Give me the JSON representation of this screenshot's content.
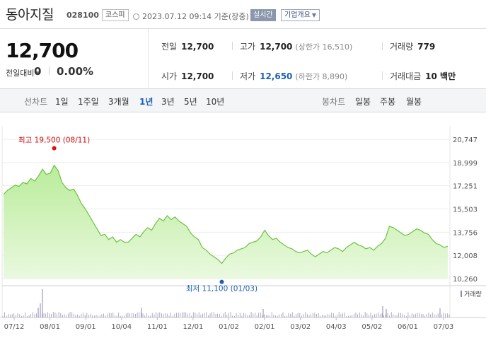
{
  "header": {
    "name": "동아지질",
    "code": "028100",
    "market": "코스피",
    "timestamp": "2023.07.12 09:14 기준(장중)",
    "realtime": "실시간",
    "company_overview": "기업개요"
  },
  "summary": {
    "price": "12,700",
    "change_label": "전일대비",
    "change_value": "0",
    "change_rate": "0.00%",
    "prev_close_label": "전일",
    "prev_close": "12,700",
    "open_label": "시가",
    "open": "12,700",
    "high_label": "고가",
    "high": "12,700",
    "upper_limit": "(상한가 16,510)",
    "low_label": "저가",
    "low": "12,650",
    "lower_limit": "(하한가 8,890)",
    "volume_label": "거래량",
    "volume": "779",
    "amount_label": "거래대금",
    "amount": "10 백만"
  },
  "tabs": {
    "line_label": "선차트",
    "line_periods": [
      "1일",
      "1주일",
      "3개월",
      "1년",
      "3년",
      "5년",
      "10년"
    ],
    "active_period": "1년",
    "candle_label": "봉차트",
    "candle_periods": [
      "일봉",
      "주봉",
      "월봉"
    ]
  },
  "chart_data": {
    "type": "area",
    "y_ticks": [
      "20,747",
      "18,999",
      "17,251",
      "15,503",
      "13,756",
      "12,008",
      "10,260"
    ],
    "ylim": [
      10260,
      20747
    ],
    "x_ticks": [
      "07/12",
      "08/01",
      "09/01",
      "10/04",
      "11/01",
      "12/01",
      "01/02",
      "02/01",
      "03/02",
      "04/03",
      "05/02",
      "06/01",
      "07/03"
    ],
    "annotations": {
      "high_label": "최고 19,500 (08/11)",
      "low_label": "최저 11,100 (01/03)"
    },
    "volume_legend": "거래량",
    "prices": [
      16600,
      16900,
      17100,
      17300,
      17200,
      17500,
      17400,
      17800,
      17600,
      18000,
      18500,
      18100,
      18200,
      18800,
      18400,
      17500,
      17100,
      16900,
      17000,
      16500,
      15900,
      15500,
      15000,
      14500,
      14000,
      13500,
      13600,
      13200,
      13400,
      13000,
      13200,
      13000,
      13000,
      13300,
      13600,
      13400,
      13800,
      14100,
      13900,
      14400,
      14800,
      14600,
      15000,
      14700,
      14900,
      14600,
      14400,
      14200,
      13700,
      13400,
      13200,
      12600,
      12400,
      12100,
      11900,
      11700,
      11400,
      11800,
      12100,
      12200,
      12400,
      12500,
      12600,
      12900,
      13000,
      13100,
      13400,
      13900,
      13500,
      13200,
      13300,
      13000,
      12800,
      12600,
      12500,
      12300,
      12200,
      12300,
      12400,
      12100,
      11900,
      12100,
      12300,
      12200,
      12400,
      12600,
      12500,
      12300,
      12600,
      12800,
      13000,
      12800,
      12700,
      12500,
      12600,
      12400,
      12700,
      12900,
      13300,
      14200,
      14100,
      13900,
      13700,
      13500,
      13600,
      13800,
      14000,
      13900,
      13700,
      13600,
      13200,
      12900,
      12800,
      12600,
      12700
    ]
  }
}
